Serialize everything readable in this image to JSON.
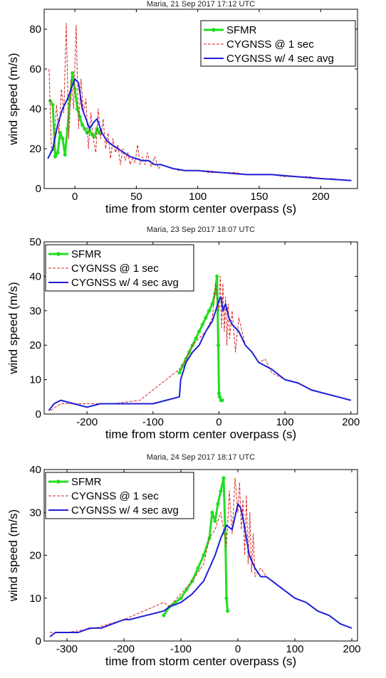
{
  "chart_data": [
    {
      "type": "line",
      "title": "Maria, 21 Sep 2017 17:12 UTC",
      "xlabel": "time from storm center overpass (s)",
      "ylabel": "wind speed (m/s)",
      "xlim": [
        -25,
        230
      ],
      "ylim": [
        0,
        90
      ],
      "xticks": [
        0,
        50,
        100,
        150,
        200
      ],
      "yticks": [
        0,
        20,
        40,
        60,
        80
      ],
      "grid": false,
      "legend_position": "top-right",
      "colors": {
        "sfmr": "#22dd22",
        "cygnss_1s": "#d62728",
        "cygnss_4s": "#1f1fd6"
      },
      "series": [
        {
          "name": "SFMR",
          "x": [
            -20,
            -18,
            -16,
            -14,
            -12,
            -10,
            -8,
            -6,
            -4,
            -2,
            0,
            2,
            4,
            6,
            8,
            10,
            12,
            14,
            16,
            18,
            20
          ],
          "y": [
            44,
            42,
            16,
            18,
            28,
            25,
            17,
            30,
            45,
            58,
            50,
            40,
            36,
            32,
            30,
            28,
            29,
            27,
            26,
            30,
            28
          ]
        },
        {
          "name": "CYGNSS @ 1 sec",
          "x": [
            -21,
            -19,
            -17,
            -15,
            -13,
            -11,
            -9,
            -7,
            -5,
            -3,
            -1,
            1,
            3,
            5,
            7,
            9,
            11,
            13,
            15,
            17,
            19,
            21,
            23,
            25,
            27,
            29,
            31,
            33,
            35,
            37,
            39,
            41,
            43,
            45,
            47,
            49,
            51,
            53,
            55,
            57,
            59,
            62,
            65,
            68,
            71,
            75,
            80,
            85,
            90,
            100,
            110,
            120,
            130,
            140,
            150,
            160,
            170,
            180,
            190,
            200,
            210,
            220
          ],
          "y": [
            60,
            18,
            20,
            42,
            28,
            50,
            38,
            83,
            25,
            55,
            40,
            82,
            30,
            55,
            38,
            45,
            20,
            38,
            25,
            18,
            40,
            25,
            35,
            20,
            28,
            15,
            25,
            18,
            22,
            12,
            20,
            14,
            18,
            12,
            15,
            13,
            22,
            12,
            16,
            12,
            18,
            11,
            16,
            10,
            12,
            11,
            10,
            9,
            9,
            9,
            8,
            8,
            8,
            7,
            7,
            7,
            6,
            6,
            6,
            5,
            5,
            4
          ]
        },
        {
          "name": "CYGNSS w/ 4 sec avg",
          "x": [
            -22,
            -18,
            -14,
            -10,
            -6,
            -3,
            0,
            3,
            6,
            9,
            12,
            15,
            18,
            22,
            26,
            30,
            35,
            40,
            45,
            50,
            55,
            60,
            65,
            70,
            80,
            90,
            100,
            120,
            140,
            160,
            180,
            200,
            225
          ],
          "y": [
            15,
            20,
            32,
            40,
            45,
            50,
            55,
            53,
            40,
            35,
            30,
            33,
            35,
            28,
            24,
            22,
            20,
            18,
            16,
            15,
            14,
            14,
            12,
            12,
            10,
            9,
            9,
            8,
            7,
            7,
            6,
            5,
            4
          ]
        }
      ]
    },
    {
      "type": "line",
      "title": "Maria, 23 Sep 2017 18:07 UTC",
      "xlabel": "time from storm center overpass (s)",
      "ylabel": "wind speed (m/s)",
      "xlim": [
        -265,
        210
      ],
      "ylim": [
        0,
        50
      ],
      "xticks": [
        -200,
        -100,
        0,
        100,
        200
      ],
      "yticks": [
        0,
        10,
        20,
        30,
        40,
        50
      ],
      "grid": false,
      "legend_position": "top-left",
      "colors": {
        "sfmr": "#22dd22",
        "cygnss_1s": "#d62728",
        "cygnss_4s": "#1f1fd6"
      },
      "series": [
        {
          "name": "SFMR",
          "x": [
            -60,
            -55,
            -50,
            -45,
            -40,
            -35,
            -30,
            -25,
            -20,
            -15,
            -10,
            -6,
            -3,
            -1,
            0,
            1,
            3,
            5
          ],
          "y": [
            12,
            14,
            16,
            18,
            20,
            22,
            24,
            26,
            28,
            30,
            32,
            35,
            40,
            20,
            6,
            5,
            4,
            4
          ]
        },
        {
          "name": "CYGNSS @ 1 sec",
          "x": [
            -255,
            -240,
            -200,
            -160,
            -120,
            -60,
            -50,
            -40,
            -30,
            -20,
            -10,
            -5,
            0,
            2,
            4,
            6,
            8,
            10,
            12,
            14,
            16,
            20,
            25,
            30,
            40,
            50,
            60,
            70,
            80,
            100,
            120,
            140,
            160,
            180,
            200
          ],
          "y": [
            1,
            3,
            3,
            3,
            4,
            13,
            16,
            20,
            22,
            24,
            28,
            38,
            30,
            40,
            25,
            38,
            24,
            34,
            20,
            32,
            22,
            30,
            18,
            28,
            20,
            18,
            15,
            16,
            12,
            10,
            9,
            7,
            6,
            5,
            4
          ]
        },
        {
          "name": "CYGNSS w/ 4 sec avg",
          "x": [
            -258,
            -250,
            -240,
            -220,
            -200,
            -180,
            -160,
            -140,
            -120,
            -100,
            -80,
            -60,
            -58,
            -50,
            -40,
            -30,
            -20,
            -10,
            -5,
            0,
            3,
            6,
            10,
            15,
            20,
            30,
            40,
            50,
            60,
            80,
            100,
            120,
            140,
            160,
            180,
            200
          ],
          "y": [
            1,
            3,
            4,
            3,
            2,
            3,
            3,
            3,
            3,
            3,
            4,
            5,
            10,
            15,
            18,
            20,
            24,
            27,
            30,
            33,
            34,
            30,
            32,
            28,
            26,
            24,
            20,
            18,
            15,
            13,
            10,
            9,
            7,
            6,
            5,
            4
          ]
        }
      ]
    },
    {
      "type": "line",
      "title": "Maria, 24 Sep 2017 18:17 UTC",
      "xlabel": "time from storm center overpass (s)",
      "ylabel": "wind speed (m/s)",
      "xlim": [
        -340,
        210
      ],
      "ylim": [
        0,
        40
      ],
      "xticks": [
        -300,
        -200,
        -100,
        0,
        100,
        200
      ],
      "yticks": [
        0,
        10,
        20,
        30,
        40
      ],
      "grid": false,
      "legend_position": "top-left",
      "colors": {
        "sfmr": "#22dd22",
        "cygnss_1s": "#d62728",
        "cygnss_4s": "#1f1fd6"
      },
      "series": [
        {
          "name": "SFMR",
          "x": [
            -130,
            -120,
            -110,
            -100,
            -90,
            -80,
            -70,
            -60,
            -50,
            -45,
            -40,
            -35,
            -30,
            -25,
            -22,
            -20,
            -18
          ],
          "y": [
            6,
            8,
            9,
            10,
            12,
            14,
            17,
            20,
            24,
            30,
            28,
            32,
            35,
            38,
            25,
            10,
            7
          ]
        },
        {
          "name": "CYGNSS @ 1 sec",
          "x": [
            -330,
            -300,
            -250,
            -200,
            -130,
            -120,
            -100,
            -80,
            -60,
            -50,
            -40,
            -30,
            -20,
            -15,
            -10,
            -5,
            0,
            3,
            6,
            9,
            12,
            15,
            18,
            21,
            24,
            27,
            30,
            40,
            50,
            60,
            70,
            80,
            100,
            120,
            140,
            160,
            180,
            200
          ],
          "y": [
            2,
            2,
            3,
            5,
            9,
            8,
            11,
            14,
            18,
            24,
            26,
            30,
            22,
            35,
            25,
            38,
            30,
            37,
            26,
            33,
            20,
            34,
            18,
            30,
            16,
            25,
            15,
            17,
            15,
            14,
            13,
            12,
            10,
            9,
            7,
            6,
            4,
            3
          ]
        },
        {
          "name": "CYGNSS w/ 4 sec avg",
          "x": [
            -330,
            -320,
            -300,
            -280,
            -260,
            -240,
            -220,
            -200,
            -190,
            -130,
            -120,
            -100,
            -80,
            -60,
            -50,
            -40,
            -30,
            -20,
            -10,
            0,
            5,
            10,
            15,
            20,
            30,
            40,
            50,
            60,
            70,
            80,
            100,
            120,
            140,
            160,
            180,
            200
          ],
          "y": [
            1,
            2,
            2,
            2,
            3,
            3,
            4,
            5,
            5,
            7,
            8,
            9,
            11,
            14,
            17,
            20,
            24,
            27,
            26,
            32,
            31,
            28,
            24,
            20,
            17,
            15,
            15,
            14,
            13,
            12,
            10,
            9,
            7,
            6,
            4,
            3
          ]
        }
      ]
    }
  ]
}
